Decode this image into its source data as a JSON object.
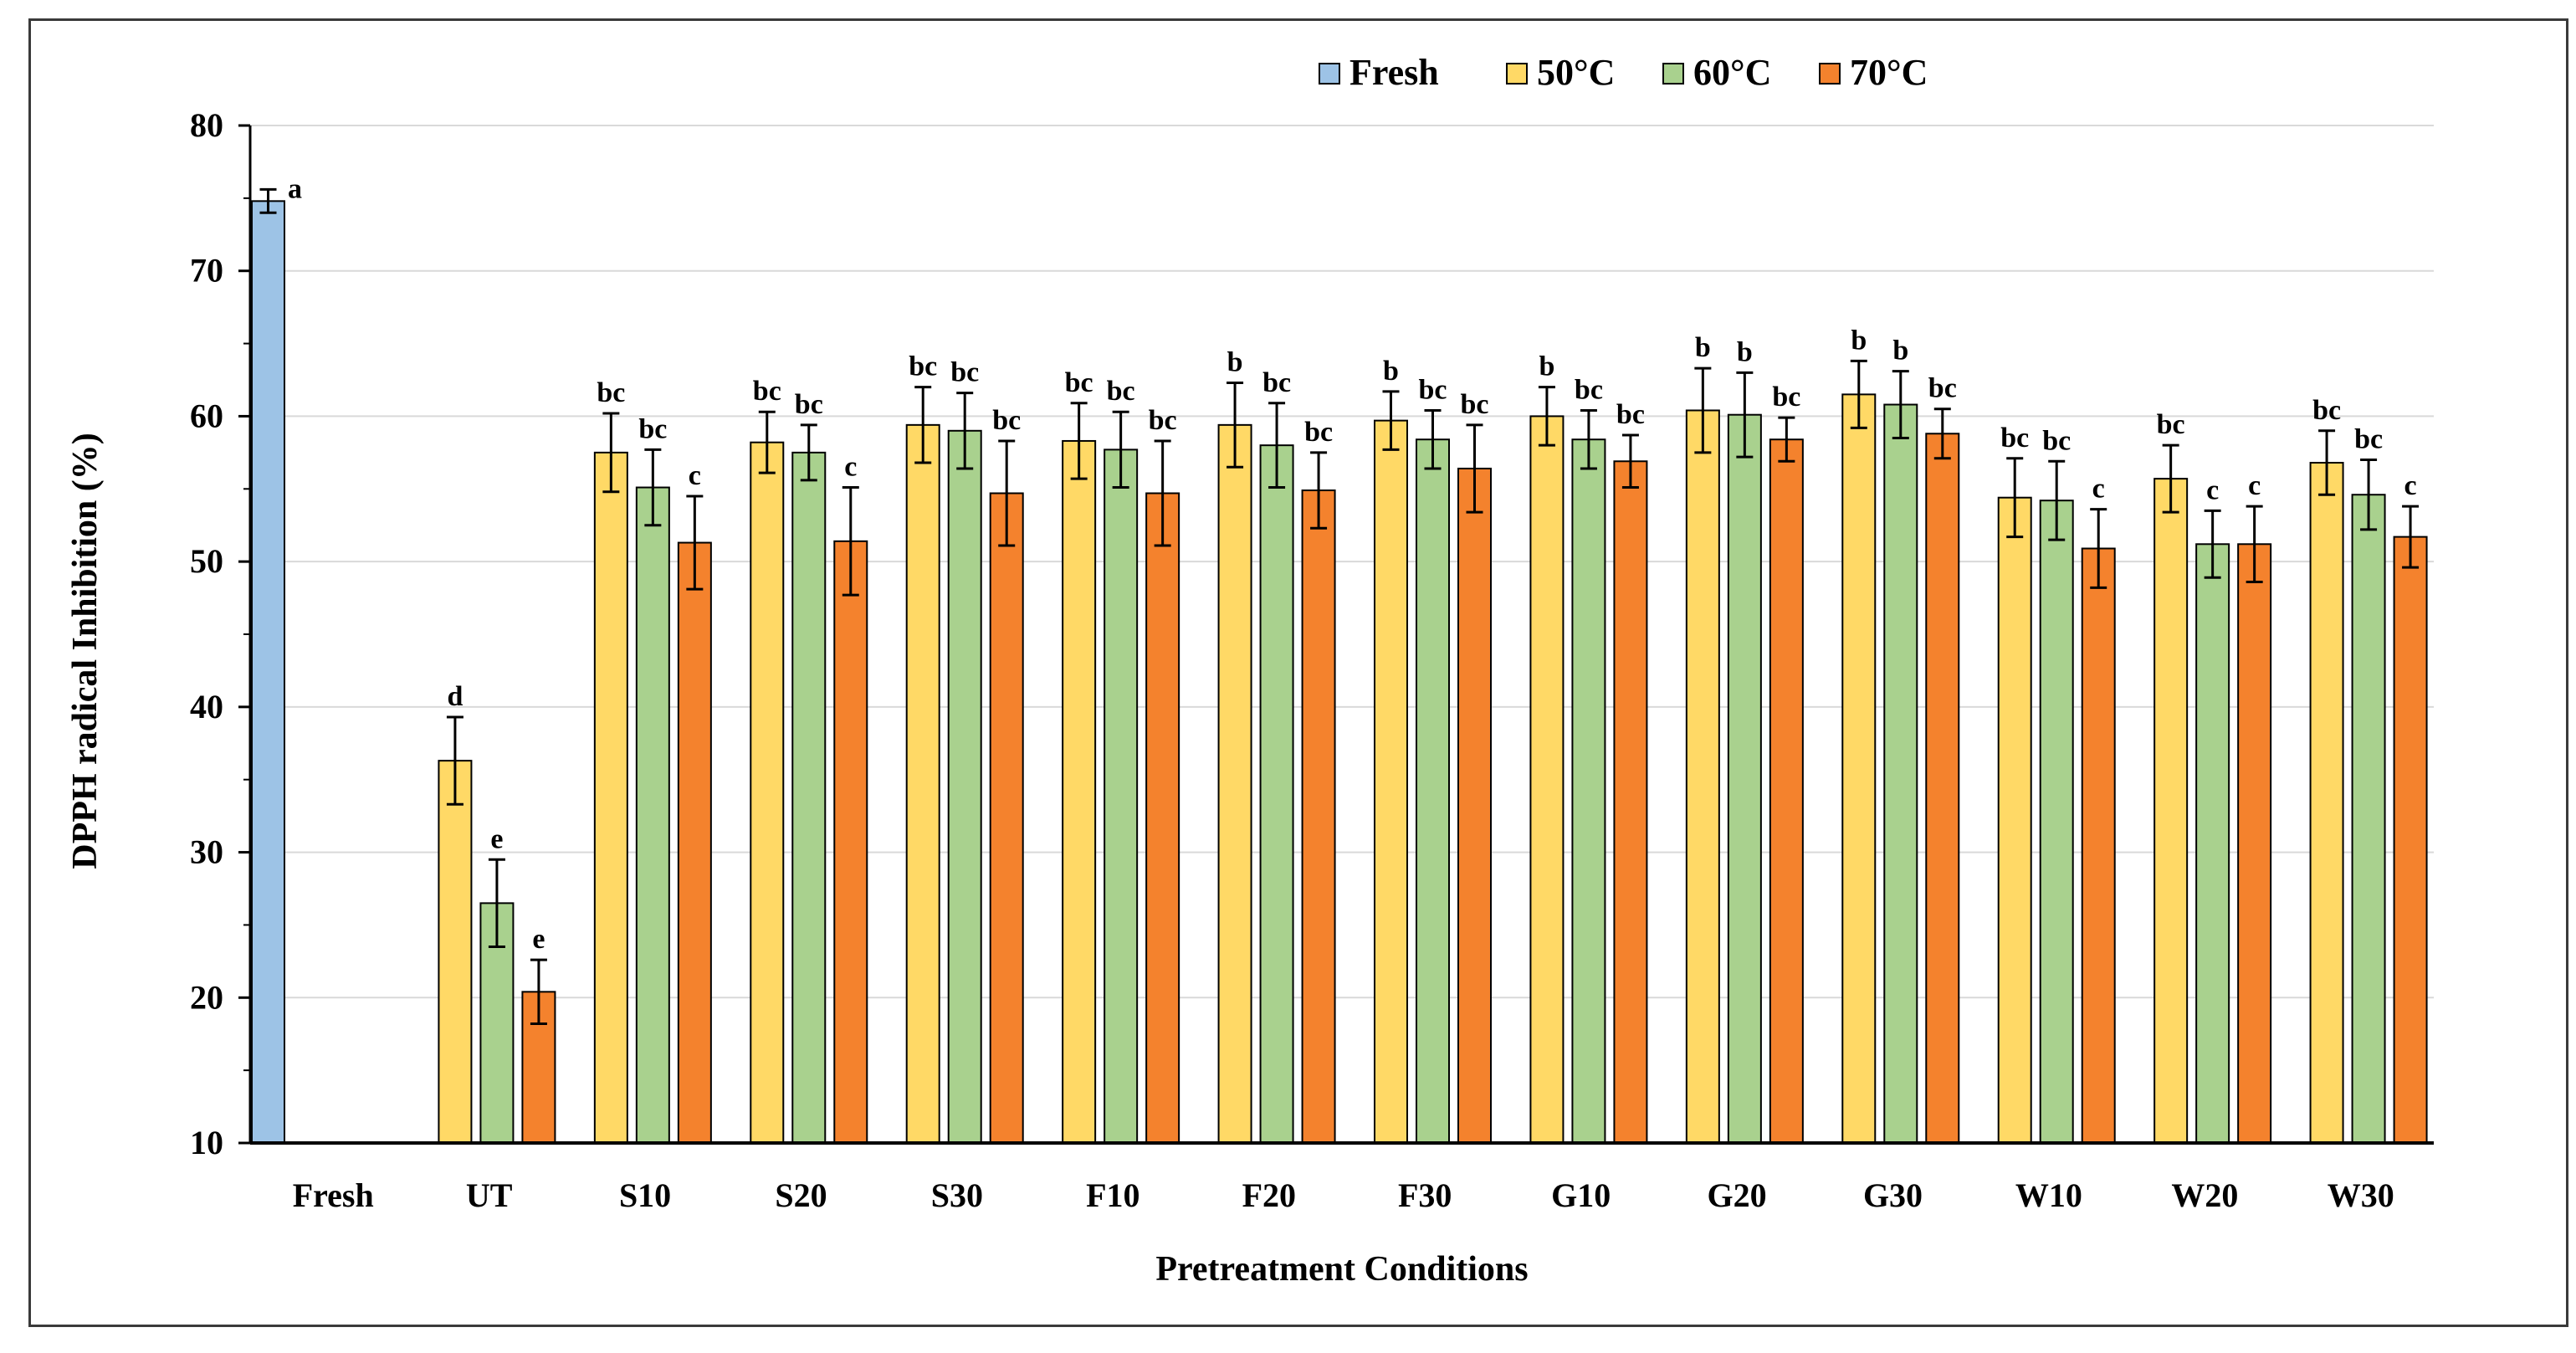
{
  "chart_data": {
    "type": "bar",
    "title": "",
    "xlabel": "Pretreatment Conditions",
    "ylabel": "DPPH radical Inhibition (%)",
    "ylim": [
      10,
      80
    ],
    "yticks": [
      10,
      20,
      30,
      40,
      50,
      60,
      70,
      80
    ],
    "grid": true,
    "legend_position": "top-right",
    "categories": [
      "Fresh",
      "UT",
      "S10",
      "S20",
      "S30",
      "F10",
      "F20",
      "F30",
      "G10",
      "G20",
      "G30",
      "W10",
      "W20",
      "W30"
    ],
    "series": [
      {
        "name": "Fresh",
        "color": "#9dc3e6",
        "values": [
          74.8,
          null,
          null,
          null,
          null,
          null,
          null,
          null,
          null,
          null,
          null,
          null,
          null,
          null
        ],
        "errors": [
          0.8,
          null,
          null,
          null,
          null,
          null,
          null,
          null,
          null,
          null,
          null,
          null,
          null,
          null
        ],
        "labels": [
          "a",
          "",
          "",
          "",
          "",
          "",
          "",
          "",
          "",
          "",
          "",
          "",
          "",
          ""
        ]
      },
      {
        "name": "50°C",
        "color": "#ffd966",
        "values": [
          null,
          36.3,
          57.5,
          58.2,
          59.4,
          58.3,
          59.4,
          59.7,
          60.0,
          60.4,
          61.5,
          54.4,
          55.7,
          56.8
        ],
        "errors": [
          null,
          3.0,
          2.7,
          2.1,
          2.6,
          2.6,
          2.9,
          2.0,
          2.0,
          2.9,
          2.3,
          2.7,
          2.3,
          2.2
        ],
        "labels": [
          "",
          "d",
          "bc",
          "bc",
          "bc",
          "bc",
          "b",
          "b",
          "b",
          "b",
          "b",
          "bc",
          "bc",
          "bc"
        ]
      },
      {
        "name": "60°C",
        "color": "#a9d18e",
        "values": [
          null,
          26.5,
          55.1,
          57.5,
          59.0,
          57.7,
          58.0,
          58.4,
          58.4,
          60.1,
          60.8,
          54.2,
          51.2,
          54.6
        ],
        "errors": [
          null,
          3.0,
          2.6,
          1.9,
          2.6,
          2.6,
          2.9,
          2.0,
          2.0,
          2.9,
          2.3,
          2.7,
          2.3,
          2.4
        ],
        "labels": [
          "",
          "e",
          "bc",
          "bc",
          "bc",
          "bc",
          "bc",
          "bc",
          "bc",
          "b",
          "b",
          "bc",
          "c",
          "bc"
        ]
      },
      {
        "name": "70°C",
        "color": "#f4822d",
        "values": [
          null,
          20.4,
          51.3,
          51.4,
          54.7,
          54.7,
          54.9,
          56.4,
          56.9,
          58.4,
          58.8,
          50.9,
          51.2,
          51.7
        ],
        "errors": [
          null,
          2.2,
          3.2,
          3.7,
          3.6,
          3.6,
          2.6,
          3.0,
          1.8,
          1.5,
          1.7,
          2.7,
          2.6,
          2.1
        ],
        "labels": [
          "",
          "e",
          "c",
          "c",
          "bc",
          "bc",
          "bc",
          "bc",
          "bc",
          "bc",
          "bc",
          "c",
          "c",
          "c"
        ]
      }
    ]
  }
}
